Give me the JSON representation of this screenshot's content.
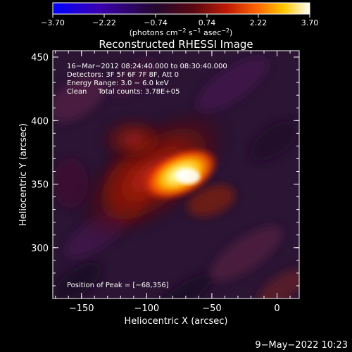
{
  "colorbar": {
    "ticks": [
      "−3.70",
      "−2.22",
      "−0.74",
      "0.74",
      "2.22",
      "3.70"
    ],
    "units_main": "(photons cm",
    "units_exp1": "−2",
    "units_mid": " s",
    "units_exp2": "−1",
    "units_mid2": " asec",
    "units_exp3": "−2",
    "units_close": ")"
  },
  "plot": {
    "title": "Reconstructed RHESSI Image",
    "info_line1": "16−Mar−2012 08:24:40.000 to 08:30:40.000",
    "info_line2": "Detectors: 3F 5F 6F 7F 8F, Att 0",
    "info_line3": "Energy Range: 3.0 − 6.0 keV",
    "info_line4": "Clean     Total counts: 3.78E+05",
    "peak_label": "Position of Peak = [−68,356]",
    "timestamp": "9−May−2022 10:23"
  },
  "chart_data": {
    "type": "heatmap",
    "title": "Reconstructed RHESSI Image",
    "xlabel": "Heliocentric X (arcsec)",
    "ylabel": "Heliocentric Y (arcsec)",
    "xlim": [
      -172,
      17
    ],
    "ylim": [
      260,
      455
    ],
    "x_ticks": [
      -150,
      -100,
      -50,
      0
    ],
    "x_tick_labels": [
      "−150",
      "−100",
      "−50",
      "0"
    ],
    "y_ticks": [
      300,
      350,
      400,
      450
    ],
    "y_tick_labels": [
      "300",
      "350",
      "400",
      "450"
    ],
    "colorbar_range": [
      -3.7,
      3.7
    ],
    "colormap": [
      "#0000ff",
      "#3a00a0",
      "#2a0a3a",
      "#6a0a1a",
      "#c81808",
      "#ff6a00",
      "#ffc800",
      "#ffffff"
    ],
    "sources": [
      {
        "name": "",
        "x": -68,
        "y": 356,
        "peak": 3.7
      },
      {
        "name": "",
        "x": -95,
        "y": 358,
        "peak": 2.6
      },
      {
        "name": "",
        "x": -110,
        "y": 385,
        "peak": 1.4
      }
    ],
    "peak_position": [
      -68,
      356
    ],
    "grid": false
  }
}
